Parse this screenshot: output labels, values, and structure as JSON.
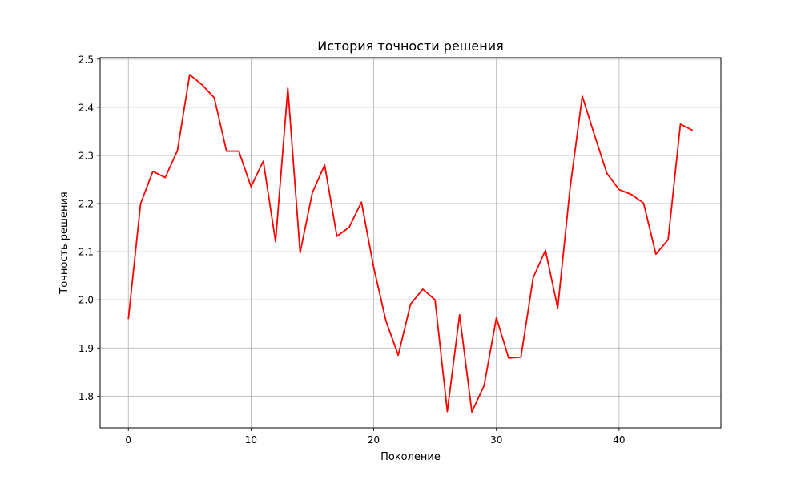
{
  "chart_data": {
    "type": "line",
    "title": "История точности решения",
    "xlabel": "Поколение",
    "ylabel": "Точность решения",
    "xlim": [
      -2.3,
      48.3
    ],
    "ylim": [
      1.734,
      2.503
    ],
    "xticks": [
      0,
      10,
      20,
      30,
      40
    ],
    "yticks": [
      1.8,
      1.9,
      2.0,
      2.1,
      2.2,
      2.3,
      2.4,
      2.5
    ],
    "ytick_labels": [
      "1.8",
      "1.9",
      "2.0",
      "2.1",
      "2.2",
      "2.3",
      "2.4",
      "2.5"
    ],
    "grid": true,
    "legend": "none",
    "series": [
      {
        "color": "#ff0000",
        "x": [
          0,
          1,
          2,
          3,
          4,
          5,
          6,
          7,
          8,
          9,
          10,
          11,
          12,
          13,
          14,
          15,
          16,
          17,
          18,
          19,
          20,
          21,
          22,
          23,
          24,
          25,
          26,
          27,
          28,
          29,
          30,
          31,
          32,
          33,
          34,
          35,
          36,
          37,
          38,
          39,
          40,
          41,
          42,
          43,
          44,
          45,
          46
        ],
        "values": [
          1.96,
          2.2,
          2.267,
          2.254,
          2.31,
          2.468,
          2.447,
          2.42,
          2.309,
          2.309,
          2.235,
          2.288,
          2.121,
          2.44,
          2.098,
          2.223,
          2.28,
          2.132,
          2.151,
          2.203,
          2.067,
          1.956,
          1.885,
          1.991,
          2.022,
          2.0,
          1.768,
          1.969,
          1.767,
          1.822,
          1.963,
          1.879,
          1.881,
          2.046,
          2.103,
          1.983,
          2.231,
          2.423,
          2.342,
          2.263,
          2.229,
          2.219,
          2.201,
          2.095,
          2.125,
          2.365,
          2.352
        ]
      }
    ]
  }
}
